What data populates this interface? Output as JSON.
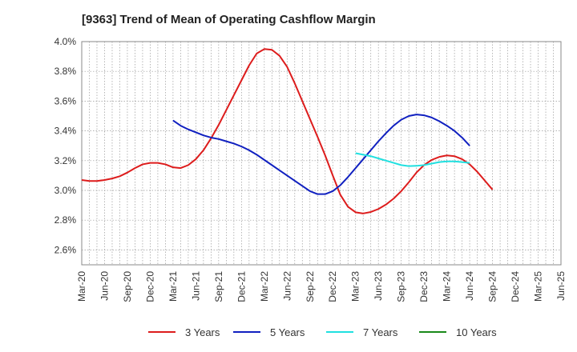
{
  "chart_data": {
    "type": "line",
    "title": "[9363]  Trend of Mean of Operating Cashflow Margin",
    "xlabel": "",
    "ylabel": "",
    "ylim": [
      2.5,
      4.0
    ],
    "y_ticks": [
      2.6,
      2.8,
      3.0,
      3.2,
      3.4,
      3.6,
      3.8,
      4.0
    ],
    "y_tick_labels": [
      "2.6%",
      "2.8%",
      "3.0%",
      "3.2%",
      "3.4%",
      "3.6%",
      "3.8%",
      "4.0%"
    ],
    "x_tick_labels": [
      "Mar-20",
      "Jun-20",
      "Sep-20",
      "Dec-20",
      "Mar-21",
      "Jun-21",
      "Sep-21",
      "Dec-21",
      "Mar-22",
      "Jun-22",
      "Sep-22",
      "Dec-22",
      "Mar-23",
      "Jun-23",
      "Sep-23",
      "Dec-23",
      "Mar-24",
      "Jun-24",
      "Sep-24",
      "Dec-24",
      "Mar-25",
      "Jun-25"
    ],
    "grid": true,
    "legend_position": "bottom",
    "series": [
      {
        "name": "3 Years",
        "color": "#dd1c1c",
        "points": [
          [
            "Mar-20",
            3.07
          ],
          [
            "Apr-20",
            3.063
          ],
          [
            "May-20",
            3.063
          ],
          [
            "Jun-20",
            3.07
          ],
          [
            "Jul-20",
            3.08
          ],
          [
            "Aug-20",
            3.095
          ],
          [
            "Sep-20",
            3.12
          ],
          [
            "Oct-20",
            3.15
          ],
          [
            "Nov-20",
            3.175
          ],
          [
            "Dec-20",
            3.185
          ],
          [
            "Jan-21",
            3.185
          ],
          [
            "Feb-21",
            3.175
          ],
          [
            "Mar-21",
            3.155
          ],
          [
            "Apr-21",
            3.15
          ],
          [
            "May-21",
            3.17
          ],
          [
            "Jun-21",
            3.21
          ],
          [
            "Jul-21",
            3.27
          ],
          [
            "Aug-21",
            3.35
          ],
          [
            "Sep-21",
            3.44
          ],
          [
            "Oct-21",
            3.54
          ],
          [
            "Nov-21",
            3.64
          ],
          [
            "Dec-21",
            3.74
          ],
          [
            "Jan-22",
            3.84
          ],
          [
            "Feb-22",
            3.92
          ],
          [
            "Mar-22",
            3.95
          ],
          [
            "Apr-22",
            3.945
          ],
          [
            "May-22",
            3.905
          ],
          [
            "Jun-22",
            3.83
          ],
          [
            "Jul-22",
            3.72
          ],
          [
            "Aug-22",
            3.6
          ],
          [
            "Sep-22",
            3.48
          ],
          [
            "Oct-22",
            3.36
          ],
          [
            "Nov-22",
            3.235
          ],
          [
            "Dec-22",
            3.1
          ],
          [
            "Jan-23",
            2.97
          ],
          [
            "Feb-23",
            2.89
          ],
          [
            "Mar-23",
            2.853
          ],
          [
            "Apr-23",
            2.845
          ],
          [
            "May-23",
            2.855
          ],
          [
            "Jun-23",
            2.875
          ],
          [
            "Jul-23",
            2.905
          ],
          [
            "Aug-23",
            2.945
          ],
          [
            "Sep-23",
            2.995
          ],
          [
            "Oct-23",
            3.055
          ],
          [
            "Nov-23",
            3.12
          ],
          [
            "Dec-23",
            3.17
          ],
          [
            "Jan-24",
            3.205
          ],
          [
            "Feb-24",
            3.225
          ],
          [
            "Mar-24",
            3.235
          ],
          [
            "Apr-24",
            3.23
          ],
          [
            "May-24",
            3.21
          ],
          [
            "Jun-24",
            3.175
          ],
          [
            "Jul-24",
            3.125
          ],
          [
            "Aug-24",
            3.065
          ],
          [
            "Sep-24",
            3.005
          ]
        ]
      },
      {
        "name": "5 Years",
        "color": "#1020c0",
        "points": [
          [
            "Mar-21",
            3.47
          ],
          [
            "Apr-21",
            3.435
          ],
          [
            "May-21",
            3.41
          ],
          [
            "Jun-21",
            3.39
          ],
          [
            "Jul-21",
            3.37
          ],
          [
            "Aug-21",
            3.355
          ],
          [
            "Sep-21",
            3.345
          ],
          [
            "Oct-21",
            3.33
          ],
          [
            "Nov-21",
            3.315
          ],
          [
            "Dec-21",
            3.295
          ],
          [
            "Jan-22",
            3.27
          ],
          [
            "Feb-22",
            3.24
          ],
          [
            "Mar-22",
            3.205
          ],
          [
            "Apr-22",
            3.17
          ],
          [
            "May-22",
            3.135
          ],
          [
            "Jun-22",
            3.1
          ],
          [
            "Jul-22",
            3.065
          ],
          [
            "Aug-22",
            3.03
          ],
          [
            "Sep-22",
            2.995
          ],
          [
            "Oct-22",
            2.975
          ],
          [
            "Nov-22",
            2.975
          ],
          [
            "Dec-22",
            2.995
          ],
          [
            "Jan-23",
            3.035
          ],
          [
            "Feb-23",
            3.09
          ],
          [
            "Mar-23",
            3.15
          ],
          [
            "Apr-23",
            3.21
          ],
          [
            "May-23",
            3.27
          ],
          [
            "Jun-23",
            3.33
          ],
          [
            "Jul-23",
            3.385
          ],
          [
            "Aug-23",
            3.435
          ],
          [
            "Sep-23",
            3.475
          ],
          [
            "Oct-23",
            3.5
          ],
          [
            "Nov-23",
            3.51
          ],
          [
            "Dec-23",
            3.505
          ],
          [
            "Jan-24",
            3.49
          ],
          [
            "Feb-24",
            3.465
          ],
          [
            "Mar-24",
            3.435
          ],
          [
            "Apr-24",
            3.4
          ],
          [
            "May-24",
            3.355
          ],
          [
            "Jun-24",
            3.3
          ]
        ]
      },
      {
        "name": "7 Years",
        "color": "#20e0e0",
        "points": [
          [
            "Mar-23",
            3.25
          ],
          [
            "Apr-23",
            3.24
          ],
          [
            "May-23",
            3.23
          ],
          [
            "Jun-23",
            3.215
          ],
          [
            "Jul-23",
            3.2
          ],
          [
            "Aug-23",
            3.185
          ],
          [
            "Sep-23",
            3.17
          ],
          [
            "Oct-23",
            3.163
          ],
          [
            "Nov-23",
            3.165
          ],
          [
            "Dec-23",
            3.17
          ],
          [
            "Jan-24",
            3.18
          ],
          [
            "Feb-24",
            3.19
          ],
          [
            "Mar-24",
            3.195
          ],
          [
            "Apr-24",
            3.195
          ],
          [
            "May-24",
            3.19
          ],
          [
            "Jun-24",
            3.185
          ]
        ]
      },
      {
        "name": "10 Years",
        "color": "#1a8a1a",
        "points": []
      }
    ]
  }
}
